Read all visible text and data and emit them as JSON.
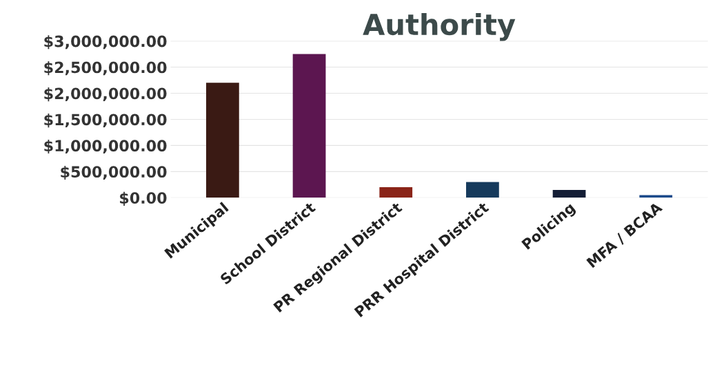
{
  "chart_data": {
    "type": "bar",
    "title": "Authority",
    "categories": [
      "Municipal",
      "School District",
      "PR Regional District",
      "PRR Hospital District",
      "Policing",
      "MFA / BCAA"
    ],
    "values": [
      2200000,
      2750000,
      200000,
      300000,
      150000,
      50000
    ],
    "colors": [
      "#3a1a14",
      "#5c1650",
      "#8a2418",
      "#163a5c",
      "#141e36",
      "#1c4a8a"
    ],
    "ylim": [
      0,
      3000000
    ],
    "yticks": [
      {
        "value": 0,
        "label": "$0.00"
      },
      {
        "value": 500000,
        "label": "$500,000.00"
      },
      {
        "value": 1000000,
        "label": "$1,000,000.00"
      },
      {
        "value": 1500000,
        "label": "$1,500,000.00"
      },
      {
        "value": 2000000,
        "label": "$2,000,000.00"
      },
      {
        "value": 2500000,
        "label": "$2,500,000.00"
      },
      {
        "value": 3000000,
        "label": "$3,000,000.00"
      }
    ],
    "grid": "y"
  }
}
